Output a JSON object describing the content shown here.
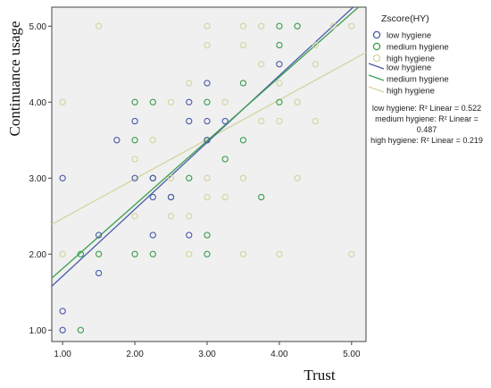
{
  "chart_data": {
    "type": "scatter",
    "title": "",
    "xlabel": "Trust",
    "ylabel": "Continuance usage",
    "xlim": [
      0.85,
      5.2
    ],
    "ylim": [
      0.85,
      5.25
    ],
    "x_ticks": [
      "1.00",
      "2.00",
      "3.00",
      "4.00",
      "5.00"
    ],
    "y_ticks": [
      "1.00",
      "2.00",
      "3.00",
      "4.00",
      "5.00"
    ],
    "grid": false,
    "legend": {
      "title": "Zscore(HY)",
      "placement": "right",
      "marker_labels": [
        "low hygiene",
        "medium hygiene",
        "high hygiene"
      ],
      "line_labels": [
        "low hygiene",
        "medium hygiene",
        "high hygiene"
      ]
    },
    "series": [
      {
        "name": "low hygiene",
        "color": "#4a5bab",
        "points": [
          [
            1.0,
            1.0
          ],
          [
            1.0,
            1.25
          ],
          [
            1.0,
            3.0
          ],
          [
            1.5,
            1.75
          ],
          [
            1.5,
            2.25
          ],
          [
            1.75,
            3.5
          ],
          [
            2.0,
            3.75
          ],
          [
            2.0,
            3.0
          ],
          [
            2.25,
            2.75
          ],
          [
            2.25,
            3.0
          ],
          [
            2.5,
            2.75
          ],
          [
            2.25,
            2.25
          ],
          [
            2.75,
            2.25
          ],
          [
            2.75,
            3.75
          ],
          [
            2.75,
            4.0
          ],
          [
            3.0,
            3.75
          ],
          [
            3.0,
            4.25
          ],
          [
            3.0,
            3.5
          ],
          [
            3.25,
            3.75
          ],
          [
            4.0,
            4.5
          ]
        ],
        "fit": {
          "intercept": 0.83,
          "slope": 0.88,
          "r2_label": "low hygiene: R² Linear = 0.522"
        }
      },
      {
        "name": "medium hygiene",
        "color": "#3a9e4f",
        "points": [
          [
            1.25,
            1.0
          ],
          [
            1.25,
            2.0
          ],
          [
            1.5,
            2.0
          ],
          [
            2.0,
            2.0
          ],
          [
            2.0,
            3.5
          ],
          [
            2.0,
            4.0
          ],
          [
            2.25,
            4.0
          ],
          [
            2.25,
            3.0
          ],
          [
            2.25,
            2.0
          ],
          [
            2.5,
            2.75
          ],
          [
            2.75,
            3.0
          ],
          [
            3.0,
            2.0
          ],
          [
            3.0,
            2.25
          ],
          [
            3.0,
            3.5
          ],
          [
            3.0,
            4.0
          ],
          [
            3.25,
            3.25
          ],
          [
            3.5,
            3.5
          ],
          [
            3.5,
            4.25
          ],
          [
            3.75,
            2.75
          ],
          [
            4.0,
            4.0
          ],
          [
            4.0,
            4.75
          ],
          [
            4.0,
            5.0
          ],
          [
            4.25,
            5.0
          ]
        ],
        "fit": {
          "intercept": 0.97,
          "slope": 0.84,
          "r2_label": "medium hygiene: R² Linear = 0.487"
        }
      },
      {
        "name": "high hygiene",
        "color": "#d4d4a0",
        "points": [
          [
            1.0,
            4.0
          ],
          [
            1.0,
            2.0
          ],
          [
            1.5,
            5.0
          ],
          [
            2.0,
            2.5
          ],
          [
            2.0,
            3.25
          ],
          [
            2.25,
            3.5
          ],
          [
            2.5,
            2.5
          ],
          [
            2.5,
            3.0
          ],
          [
            2.5,
            4.0
          ],
          [
            2.75,
            2.0
          ],
          [
            2.75,
            2.5
          ],
          [
            2.75,
            4.25
          ],
          [
            3.0,
            5.0
          ],
          [
            3.0,
            4.75
          ],
          [
            3.0,
            2.75
          ],
          [
            3.0,
            3.0
          ],
          [
            3.25,
            4.0
          ],
          [
            3.25,
            2.75
          ],
          [
            3.5,
            5.0
          ],
          [
            3.5,
            4.75
          ],
          [
            3.5,
            2.0
          ],
          [
            3.5,
            3.0
          ],
          [
            3.75,
            5.0
          ],
          [
            3.75,
            3.75
          ],
          [
            3.75,
            4.5
          ],
          [
            4.0,
            4.25
          ],
          [
            4.0,
            3.75
          ],
          [
            4.0,
            2.0
          ],
          [
            4.25,
            4.0
          ],
          [
            4.25,
            3.0
          ],
          [
            4.5,
            4.75
          ],
          [
            4.5,
            4.5
          ],
          [
            4.5,
            3.75
          ],
          [
            4.75,
            5.0
          ],
          [
            5.0,
            5.0
          ],
          [
            5.0,
            2.0
          ]
        ],
        "fit": {
          "intercept": 1.95,
          "slope": 0.52,
          "r2_label": "high hygiene: R² Linear = 0.219"
        }
      }
    ]
  }
}
